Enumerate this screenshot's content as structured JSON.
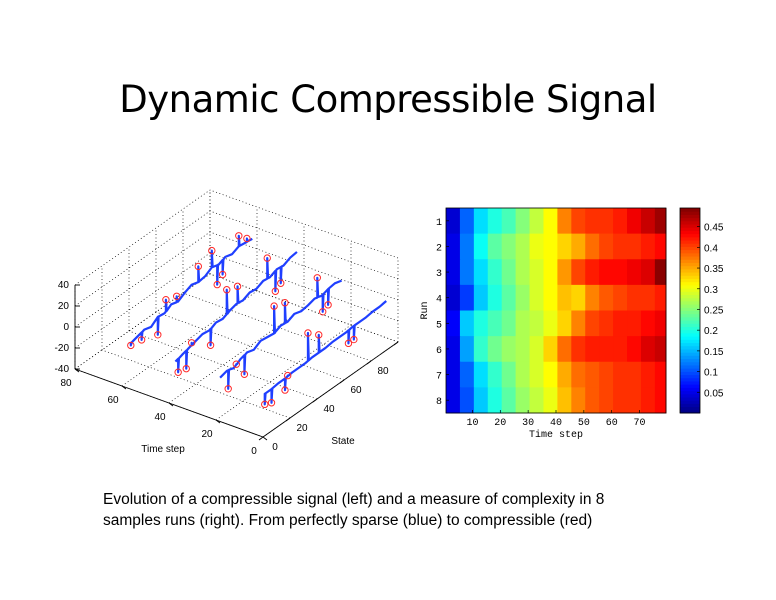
{
  "slide": {
    "title": "Dynamic Compressible Signal",
    "caption_line1": "Evolution of a compressible signal (left) and a measure of complexity in 8",
    "caption_line2": "samples runs (right). From perfectly sparse (blue) to compressible (red)"
  },
  "chart_data": [
    {
      "type": "line3d",
      "xlabel": "Time step",
      "ylabel": "State",
      "xlim": [
        0,
        80
      ],
      "ylim": [
        0,
        100
      ],
      "zlim": [
        -40,
        40
      ],
      "xticks": [
        "0",
        "20",
        "40",
        "60",
        "80"
      ],
      "yticks": [
        "0",
        "20",
        "40",
        "60",
        "80"
      ],
      "zticks": [
        "-40",
        "-20",
        "0",
        "20",
        "40"
      ],
      "grid": true,
      "line_color": "#1f3fff",
      "marker_color": "#ff2a2a",
      "state_samples": [
        10,
        15,
        20,
        25,
        30,
        35,
        40,
        45,
        50,
        55,
        60,
        65,
        70,
        75,
        80,
        85,
        90,
        95,
        100
      ],
      "series": [
        {
          "time": 5,
          "values": [
            -12,
            -12,
            -11,
            -11,
            -10,
            -10,
            -10,
            -9,
            -9,
            -9,
            -8,
            -8,
            -8,
            -7,
            -7,
            -7,
            -6,
            -6,
            -5
          ],
          "spikes": [
            [
              10,
              -22
            ],
            [
              15,
              -25
            ],
            [
              25,
              -22
            ],
            [
              27,
              -10
            ],
            [
              42,
              17
            ],
            [
              50,
              8
            ],
            [
              72,
              -20
            ],
            [
              76,
              -20
            ]
          ]
        },
        {
          "time": 24,
          "values": [
            -12,
            -10,
            -12,
            -8,
            -6,
            -8,
            -4,
            -5,
            -6,
            -3,
            -4,
            -1,
            -3,
            -2,
            0,
            -2,
            0,
            1,
            -1
          ],
          "spikes": [
            [
              16,
              -28
            ],
            [
              22,
              -10
            ],
            [
              28,
              -25
            ],
            [
              50,
              20
            ],
            [
              58,
              16
            ],
            [
              82,
              18
            ],
            [
              86,
              -18
            ],
            [
              90,
              -15
            ]
          ]
        },
        {
          "time": 43,
          "values": [
            -12,
            -10,
            -8,
            -6,
            -4,
            -5,
            -2,
            -3,
            0,
            2,
            1,
            4,
            3,
            6,
            5,
            8,
            7,
            10,
            11
          ],
          "spikes": [
            [
              12,
              -24
            ],
            [
              18,
              -26
            ],
            [
              22,
              -5
            ],
            [
              36,
              -20
            ],
            [
              48,
              22
            ],
            [
              56,
              18
            ],
            [
              78,
              25
            ],
            [
              84,
              -12
            ],
            [
              88,
              -8
            ]
          ]
        },
        {
          "time": 62,
          "values": [
            -10,
            -8,
            -6,
            -8,
            -3,
            -4,
            0,
            -2,
            2,
            5,
            3,
            4,
            8,
            6,
            9,
            7,
            10,
            9,
            8
          ],
          "spikes": [
            [
              10,
              -12
            ],
            [
              18,
              -14
            ],
            [
              30,
              -20
            ],
            [
              36,
              8
            ],
            [
              44,
              4
            ],
            [
              60,
              18
            ],
            [
              70,
              24
            ],
            [
              74,
              -12
            ],
            [
              78,
              -6
            ],
            [
              90,
              20
            ],
            [
              96,
              12
            ]
          ]
        }
      ]
    },
    {
      "type": "heatmap",
      "xlabel": "Time step",
      "ylabel": "Run",
      "xlim": [
        1,
        79
      ],
      "xticks": [
        "10",
        "20",
        "30",
        "40",
        "50",
        "60",
        "70"
      ],
      "yticks": [
        "1",
        "2",
        "3",
        "4",
        "5",
        "6",
        "7",
        "8"
      ],
      "colormap": "jet",
      "clim": [
        0,
        0.495
      ],
      "colorbar_ticks": [
        "0.05",
        "0.1",
        "0.15",
        "0.2",
        "0.25",
        "0.3",
        "0.35",
        "0.4",
        "0.45"
      ],
      "bin_time_starts": [
        1,
        6,
        11,
        16,
        21,
        26,
        31,
        36,
        41,
        46,
        51,
        56,
        61,
        66,
        71,
        76
      ],
      "rows": [
        [
          0.04,
          0.11,
          0.17,
          0.2,
          0.22,
          0.25,
          0.28,
          0.31,
          0.37,
          0.4,
          0.41,
          0.41,
          0.42,
          0.44,
          0.46,
          0.48
        ],
        [
          0.05,
          0.12,
          0.19,
          0.23,
          0.25,
          0.27,
          0.3,
          0.31,
          0.33,
          0.35,
          0.38,
          0.4,
          0.41,
          0.41,
          0.42,
          0.43
        ],
        [
          0.05,
          0.12,
          0.17,
          0.21,
          0.24,
          0.27,
          0.29,
          0.31,
          0.36,
          0.4,
          0.42,
          0.43,
          0.43,
          0.44,
          0.45,
          0.49
        ],
        [
          0.04,
          0.09,
          0.16,
          0.2,
          0.23,
          0.26,
          0.29,
          0.31,
          0.34,
          0.33,
          0.37,
          0.39,
          0.4,
          0.41,
          0.41,
          0.42
        ],
        [
          0.06,
          0.16,
          0.2,
          0.22,
          0.24,
          0.27,
          0.28,
          0.3,
          0.33,
          0.37,
          0.4,
          0.41,
          0.42,
          0.42,
          0.43,
          0.44
        ],
        [
          0.05,
          0.14,
          0.21,
          0.24,
          0.26,
          0.27,
          0.29,
          0.33,
          0.38,
          0.41,
          0.42,
          0.42,
          0.42,
          0.43,
          0.45,
          0.46
        ],
        [
          0.05,
          0.11,
          0.17,
          0.21,
          0.24,
          0.27,
          0.29,
          0.31,
          0.35,
          0.38,
          0.39,
          0.4,
          0.41,
          0.41,
          0.42,
          0.43
        ],
        [
          0.05,
          0.1,
          0.16,
          0.2,
          0.23,
          0.26,
          0.28,
          0.3,
          0.34,
          0.37,
          0.39,
          0.4,
          0.41,
          0.41,
          0.42,
          0.43
        ]
      ]
    }
  ]
}
